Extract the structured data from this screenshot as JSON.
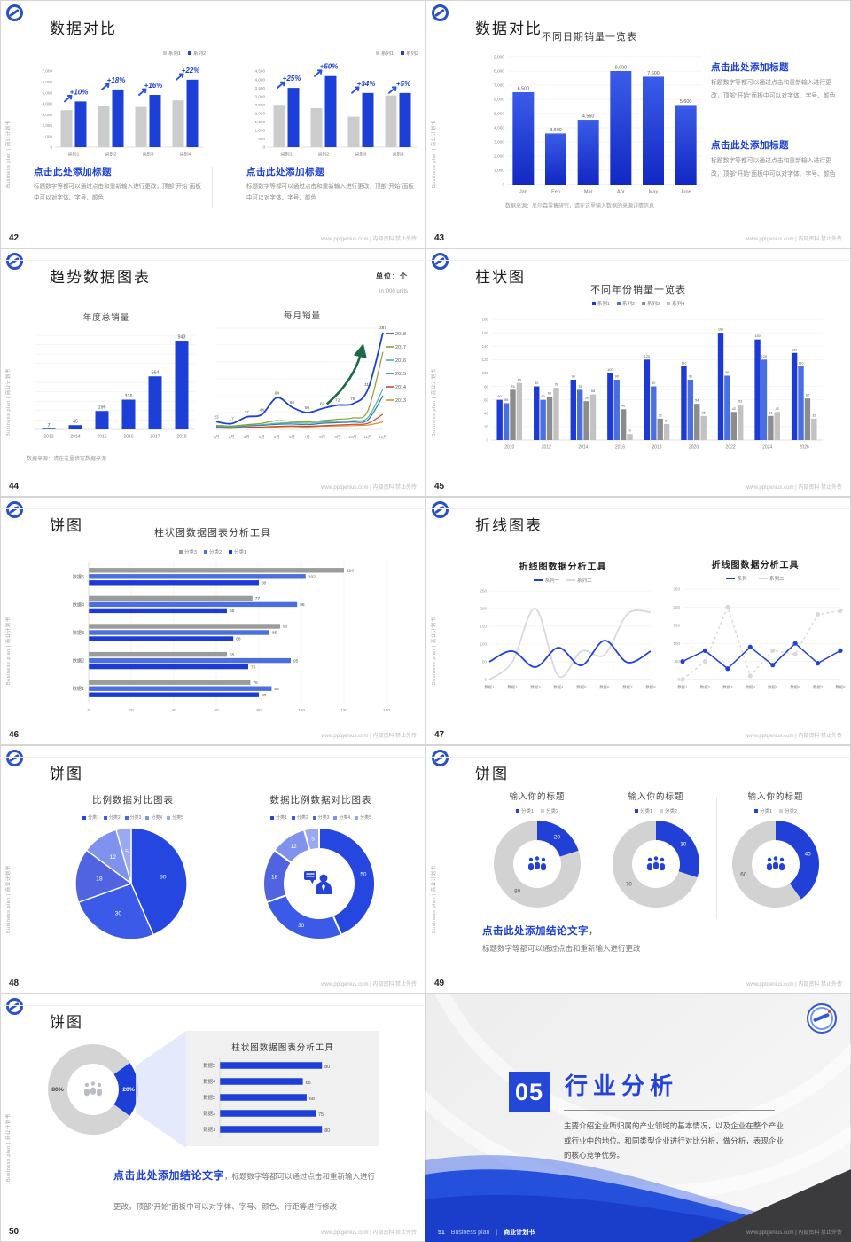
{
  "page": {
    "footer_right": "www.pptgenius.com | 内部资料 禁止外传",
    "side_text": "Business plan | 商业计划书",
    "accent_color": "#1c3fd8",
    "heading_color": "#1b3ed6"
  },
  "slides": {
    "s42": {
      "no": "42",
      "title": "数据对比",
      "blocks": [
        {
          "h": "点击此处添加标题",
          "p": "标题数字等都可以通过点击和重新输入进行更改，顶部“开始”面板中可以对字体、字号、颜色"
        },
        {
          "h": "点击此处添加标题",
          "p": "标题数字等都可以通过点击和重新输入进行更改，顶部“开始”面板中可以对字体、字号、颜色"
        }
      ]
    },
    "s43": {
      "no": "43",
      "title": "数据对比",
      "blocks": [
        {
          "h": "点击此处添加标题",
          "p": "标题数字等都可以通过点击和重新输入进行更改，顶部“开始”面板中可以对字体、字号、颜色"
        },
        {
          "h": "点击此处添加标题",
          "p": "标题数字等都可以通过点击和重新输入进行更改，顶部“开始”面板中可以对字体、字号、颜色"
        }
      ]
    },
    "s44": {
      "no": "44",
      "title": "趋势数据图表",
      "unit1": "单位：个",
      "unit2": "in '000 units",
      "source": "数据来源：请在这里填写数据来源"
    },
    "s45": {
      "no": "45",
      "title": "柱状图"
    },
    "s46": {
      "no": "46",
      "title": "饼图"
    },
    "s47": {
      "no": "47",
      "title": "折线图表"
    },
    "s48": {
      "no": "48",
      "title": "饼图"
    },
    "s49": {
      "no": "49",
      "title": "饼图",
      "concl_h": "点击此处添加结论文字",
      "concl_sep": "，",
      "concl_p": "标题数字等都可以通过点击和重新输入进行更改"
    },
    "s50": {
      "no": "50",
      "title": "饼图",
      "concl_h": "点击此处添加结论文字",
      "concl_p": "，标题数字等都可以通过点击和重新输入进行更改，顶部“开始”面板中可以对字体、字号、颜色、行距等进行修改"
    },
    "s51": {
      "no": "51",
      "num": "05",
      "title": "行业分析",
      "para": "主要介绍企业所归属的产业领域的基本情况，以及企业在整个产业或行业中的地位。和同类型企业进行对比分析，做分析，表现企业的核心竞争优势。",
      "foot_a": "Business plan",
      "foot_sep": "|",
      "foot_b": "商业计划书"
    }
  },
  "chart_data": [
    {
      "id": "c42a",
      "type": "bar",
      "title": "",
      "categories": [
        "类别1",
        "类别2",
        "类别3",
        "类别4"
      ],
      "ylim": [
        0,
        7000
      ],
      "series": [
        {
          "name": "系列1",
          "color": "#cccccc",
          "values": [
            3400,
            3800,
            3700,
            4300
          ]
        },
        {
          "name": "系列2",
          "color": "#1c3fd8",
          "values": [
            4200,
            5300,
            4800,
            6200
          ]
        }
      ],
      "annotations": [
        "+10%",
        "+18%",
        "+16%",
        "+22%"
      ]
    },
    {
      "id": "c42b",
      "type": "bar",
      "title": "",
      "categories": [
        "类别1",
        "类别2",
        "类别3",
        "类别4"
      ],
      "ylim": [
        0,
        4500
      ],
      "series": [
        {
          "name": "系列1",
          "color": "#cccccc",
          "values": [
            2500,
            2300,
            1800,
            3050
          ]
        },
        {
          "name": "系列2",
          "color": "#1c3fd8",
          "values": [
            3500,
            4200,
            3200,
            3200
          ]
        }
      ],
      "annotations": [
        "+25%",
        "+50%",
        "+34%",
        "+5%"
      ]
    },
    {
      "id": "c43",
      "type": "bar",
      "title": "不同日期销量一览表",
      "categories": [
        "Jan",
        "Feb",
        "Mar",
        "Apr",
        "May",
        "June"
      ],
      "ylim": [
        0,
        9000
      ],
      "series": [
        {
          "name": "销量",
          "color": "#2140d8",
          "values": [
            6500,
            3600,
            4560,
            8000,
            7600,
            5600
          ]
        }
      ],
      "source": "数据来源：尼尔森零售研究，请在这里输入数据的来源详情信息"
    },
    {
      "id": "c44a",
      "type": "bar",
      "title": "年度总销量",
      "categories": [
        "2013",
        "2014",
        "2015",
        "2016",
        "2017",
        "2018"
      ],
      "ylim": [
        0,
        1000
      ],
      "series": [
        {
          "name": "年度总销量",
          "color": "#1c3fd8",
          "values": [
            7,
            45,
            196,
            316,
            564,
            943
          ]
        }
      ]
    },
    {
      "id": "c44b",
      "type": "line",
      "title": "每月销量",
      "categories": [
        "1月",
        "2月",
        "3月",
        "4月",
        "5月",
        "6月",
        "7月",
        "8月",
        "9月",
        "10月",
        "11月",
        "12月"
      ],
      "ylim": [
        0,
        300
      ],
      "series": [
        {
          "name": "2018",
          "color": "#1c3fd8",
          "labeled": true,
          "values": [
            23,
            17,
            37,
            44,
            94,
            66,
            50,
            62,
            72,
            76,
            118,
            287
          ]
        },
        {
          "name": "2017",
          "color": "#8a9e2f",
          "values": [
            12,
            10,
            14,
            18,
            26,
            24,
            22,
            26,
            30,
            34,
            55,
            230
          ]
        },
        {
          "name": "2016",
          "color": "#4fb3b3",
          "values": [
            10,
            8,
            12,
            14,
            18,
            20,
            18,
            22,
            24,
            26,
            35,
            120
          ]
        },
        {
          "name": "2015",
          "color": "#2f7d96",
          "values": [
            8,
            6,
            10,
            12,
            15,
            16,
            14,
            18,
            20,
            22,
            28,
            100
          ]
        },
        {
          "name": "2014",
          "color": "#bf4b42",
          "values": [
            5,
            4,
            6,
            7,
            9,
            10,
            9,
            11,
            13,
            15,
            18,
            45
          ]
        },
        {
          "name": "2013",
          "color": "#e58a2e",
          "values": [
            4,
            3,
            5,
            6,
            7,
            8,
            7,
            9,
            10,
            11,
            13,
            22
          ]
        }
      ]
    },
    {
      "id": "c45",
      "type": "bar",
      "title": "不同年份销量一览表",
      "categories": [
        "2010",
        "2012",
        "2014",
        "2016",
        "2018",
        "2020",
        "2022",
        "2024",
        "2026"
      ],
      "ylim": [
        0,
        180
      ],
      "series": [
        {
          "name": "系列1",
          "color": "#1d3bd4",
          "values": [
            60,
            80,
            90,
            100,
            120,
            110,
            160,
            150,
            130
          ]
        },
        {
          "name": "系列2",
          "color": "#4a6fe0",
          "values": [
            55,
            60,
            75,
            90,
            80,
            90,
            96,
            120,
            110
          ]
        },
        {
          "name": "系列3",
          "color": "#8c8c8c",
          "values": [
            75,
            65,
            58,
            46,
            32,
            54,
            42,
            36,
            62
          ]
        },
        {
          "name": "系列4",
          "color": "#c2c2c2",
          "values": [
            85,
            78,
            68,
            9,
            24,
            36,
            53,
            42,
            32
          ]
        }
      ]
    },
    {
      "id": "c46",
      "type": "hbar",
      "title": "柱状图数据图表分析工具",
      "categories": [
        "数据5",
        "数据4",
        "数据3",
        "数据2",
        "数据1"
      ],
      "xlim": [
        0,
        140
      ],
      "series": [
        {
          "name": "分类3",
          "color": "#9b9b9b",
          "values": [
            120,
            77,
            90,
            65,
            76
          ]
        },
        {
          "name": "分类2",
          "color": "#4a6fe0",
          "values": [
            102,
            98,
            85,
            95,
            86
          ]
        },
        {
          "name": "分类1",
          "color": "#1d3bd4",
          "values": [
            80,
            65,
            68,
            75,
            80
          ]
        }
      ]
    },
    {
      "id": "c47a",
      "type": "line",
      "title": "折线图数据分析工具",
      "categories": [
        "数据1",
        "数据2",
        "数据3",
        "数据4",
        "数据5",
        "数据6",
        "数据7",
        "数据8"
      ],
      "ylim": [
        0,
        250
      ],
      "series": [
        {
          "name": "系列一",
          "color": "#2140d6",
          "values": [
            50,
            80,
            35,
            90,
            40,
            110,
            48,
            80
          ]
        },
        {
          "name": "系列二",
          "color": "#d9d9d9",
          "values": [
            0,
            50,
            200,
            10,
            80,
            70,
            185,
            190
          ]
        }
      ]
    },
    {
      "id": "c47b",
      "type": "line",
      "title": "折线图数据分析工具",
      "categories": [
        "数据1",
        "数据2",
        "数据3",
        "数据4",
        "数据5",
        "数据6",
        "数据7",
        "数据8"
      ],
      "ylim": [
        0,
        250
      ],
      "series": [
        {
          "name": "系列一",
          "color": "#2140d6",
          "values": [
            50,
            80,
            30,
            90,
            40,
            100,
            45,
            80
          ]
        },
        {
          "name": "系列二",
          "color": "#d9d9d9",
          "values": [
            0,
            50,
            200,
            10,
            80,
            70,
            180,
            190
          ]
        }
      ]
    },
    {
      "id": "c48a",
      "type": "pie",
      "title": "比例数据对比图表",
      "labels": [
        "分类1",
        "分类2",
        "分类3",
        "分类4",
        "分类5"
      ],
      "values": [
        50,
        30,
        18,
        12,
        5
      ],
      "colors": [
        "#2547e0",
        "#3c5ae8",
        "#5064e2",
        "#7f93ee",
        "#9aa9f1"
      ]
    },
    {
      "id": "c48b",
      "type": "donut",
      "title": "数据比例数据对比图表",
      "labels": [
        "分类1",
        "分类2",
        "分类3",
        "分类4",
        "分类5"
      ],
      "values": [
        50,
        30,
        18,
        12,
        5
      ],
      "colors": [
        "#2547e0",
        "#3c5ae8",
        "#5064e2",
        "#7f93ee",
        "#9aa9f1"
      ]
    },
    {
      "id": "c49a",
      "type": "donut",
      "title": "输入你的标题",
      "labels": [
        "分类1",
        "分类2"
      ],
      "values": [
        20,
        80
      ],
      "colors": [
        "#2140d6",
        "#d2d2d2"
      ]
    },
    {
      "id": "c49b",
      "type": "donut",
      "title": "输入你的标题",
      "labels": [
        "分类1",
        "分类2"
      ],
      "values": [
        30,
        70
      ],
      "colors": [
        "#2140d6",
        "#d2d2d2"
      ]
    },
    {
      "id": "c49c",
      "type": "donut",
      "title": "输入你的标题",
      "labels": [
        "分类1",
        "分类2"
      ],
      "values": [
        40,
        60
      ],
      "colors": [
        "#2140d6",
        "#d2d2d2"
      ]
    },
    {
      "id": "c50p",
      "type": "donut",
      "title": "",
      "labels": [
        "分类1",
        "分类2"
      ],
      "values": [
        20,
        80
      ],
      "value_labels": [
        "20%",
        "80%"
      ],
      "colors": [
        "#1c3fd8",
        "#d4d4d4"
      ]
    },
    {
      "id": "c50b",
      "type": "hbar",
      "title": "柱状图数据图表分析工具",
      "categories": [
        "数据5",
        "数据4",
        "数据3",
        "数据2",
        "数据1"
      ],
      "xlim": [
        0,
        100
      ],
      "series": [
        {
          "name": "数据",
          "color": "#1d3fd8",
          "values": [
            80,
            65,
            68,
            75,
            80
          ]
        }
      ]
    }
  ]
}
